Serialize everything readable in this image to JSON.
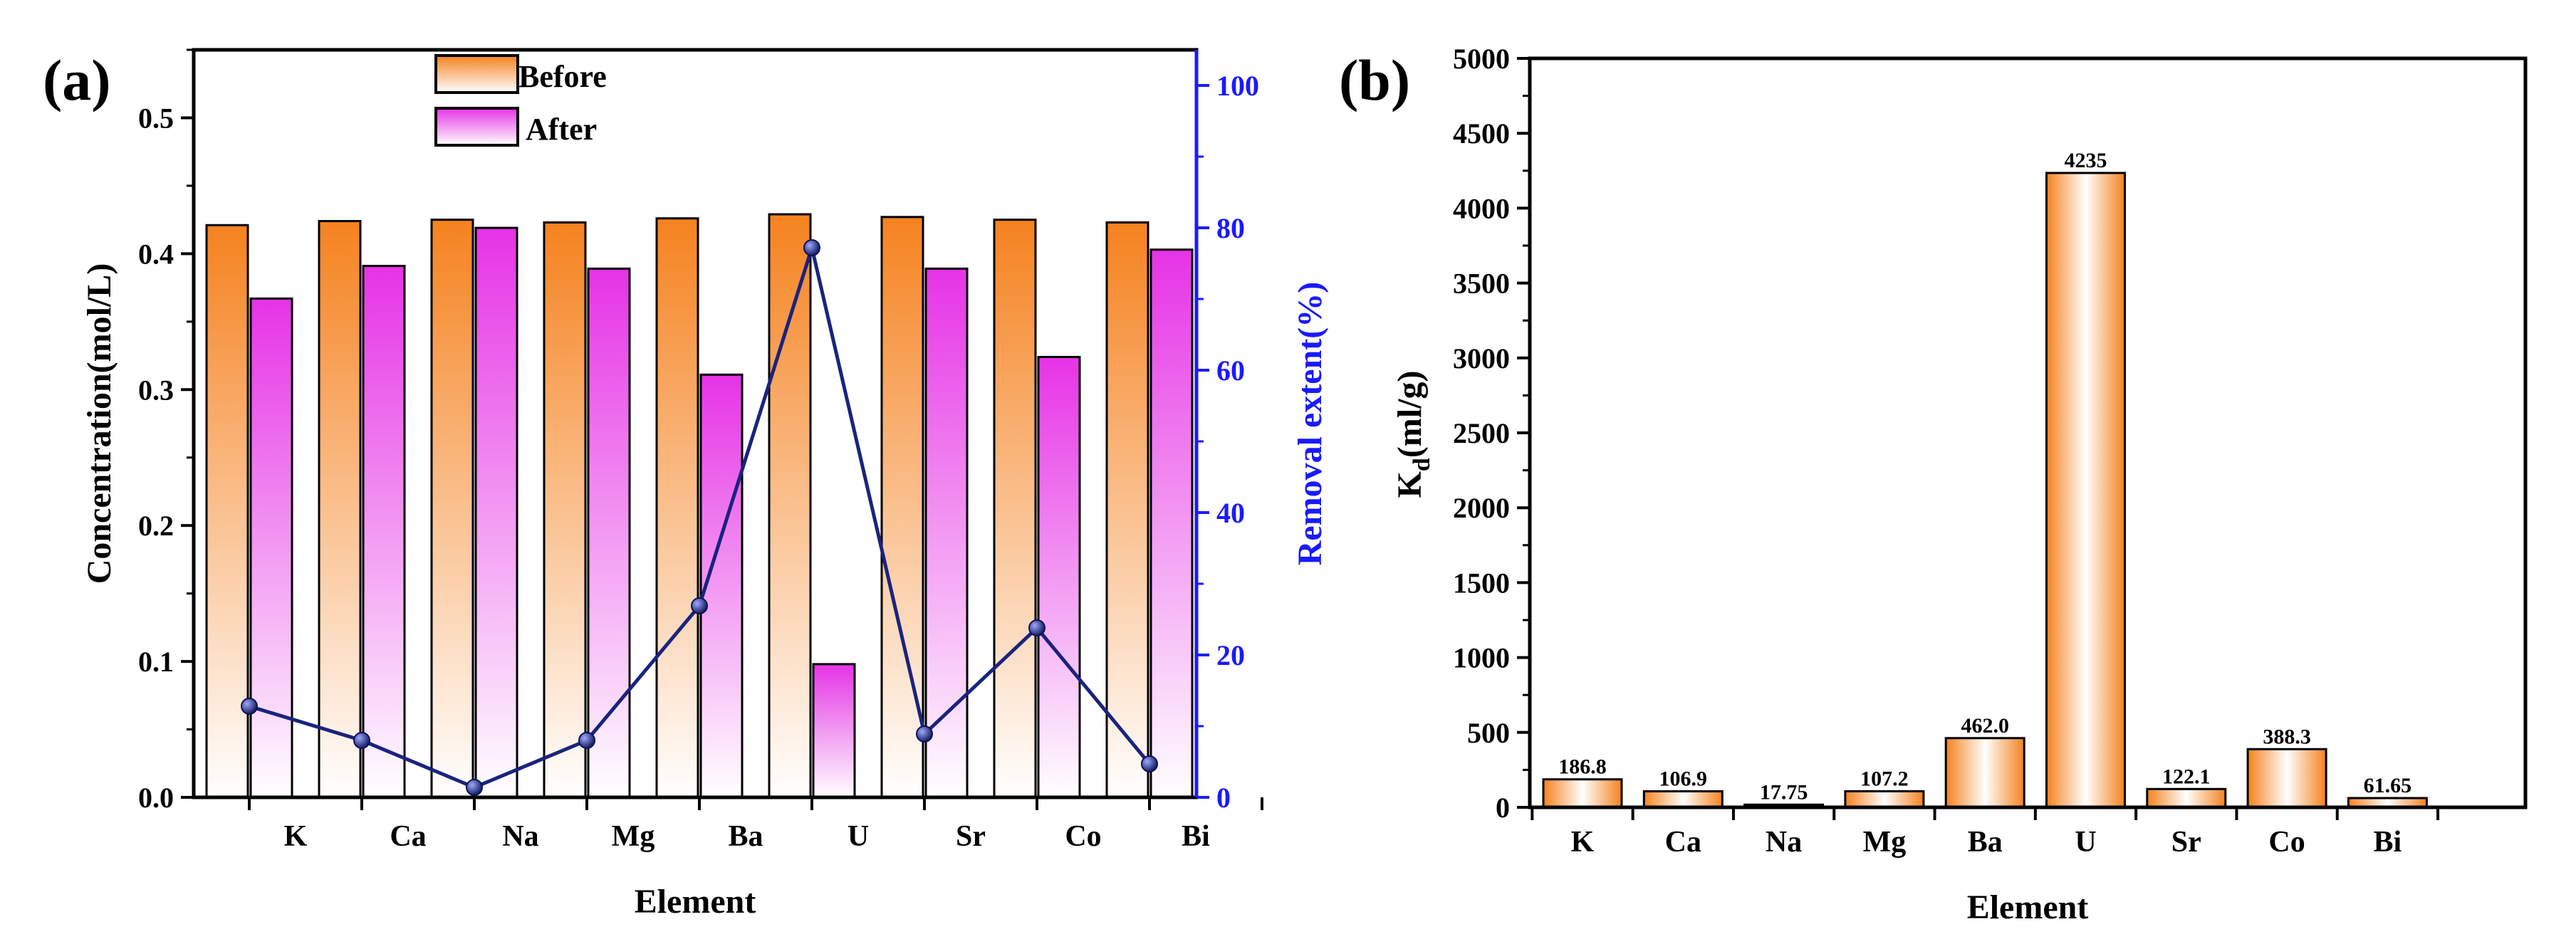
{
  "chart_data": [
    {
      "panel_label": "(a)",
      "type": "bar",
      "categories": [
        "K",
        "Ca",
        "Na",
        "Mg",
        "Ba",
        "U",
        "Sr",
        "Co",
        "Bi"
      ],
      "series": [
        {
          "name": "Before",
          "values": [
            0.421,
            0.424,
            0.425,
            0.423,
            0.426,
            0.429,
            0.427,
            0.425,
            0.423
          ],
          "color": "#f5821f"
        },
        {
          "name": "After",
          "values": [
            0.367,
            0.391,
            0.419,
            0.389,
            0.311,
            0.098,
            0.389,
            0.324,
            0.403
          ],
          "color": "#e633e6"
        }
      ],
      "line_series": {
        "name": "Removal extent",
        "values": [
          12.8,
          8.0,
          1.4,
          8.0,
          26.9,
          77.2,
          8.9,
          23.8,
          4.7
        ],
        "axis": "right",
        "color": "#1a237e"
      },
      "xlabel": "Element",
      "ylabel": "Concentration(mol/L)",
      "y2label": "Removal extent(%)",
      "ylim": [
        0,
        0.55
      ],
      "y2lim": [
        0,
        105
      ],
      "yticks": [
        "0.0",
        "0.1",
        "0.2",
        "0.3",
        "0.4",
        "0.5"
      ],
      "y2ticks": [
        "0",
        "20",
        "40",
        "60",
        "80",
        "100"
      ],
      "legend": [
        "Before",
        "After"
      ],
      "legend_position": "top-center"
    },
    {
      "panel_label": "(b)",
      "type": "bar",
      "categories": [
        "K",
        "Ca",
        "Na",
        "Mg",
        "Ba",
        "U",
        "Sr",
        "Co",
        "Bi"
      ],
      "values": [
        186.8,
        106.9,
        17.75,
        107.2,
        462.0,
        4235,
        122.1,
        388.3,
        61.65
      ],
      "value_labels": [
        "186.8",
        "106.9",
        "17.75",
        "107.2",
        "462.0",
        "4235",
        "122.1",
        "388.3",
        "61.65"
      ],
      "color": "#f5821f",
      "xlabel": "Element",
      "ylabel_main": "K",
      "ylabel_sub": "d",
      "ylabel_rest": "(ml/g)",
      "ylim": [
        0,
        5000
      ],
      "yticks": [
        "0",
        "500",
        "1000",
        "1500",
        "2000",
        "2500",
        "3000",
        "3500",
        "4000",
        "4500",
        "5000"
      ]
    }
  ]
}
